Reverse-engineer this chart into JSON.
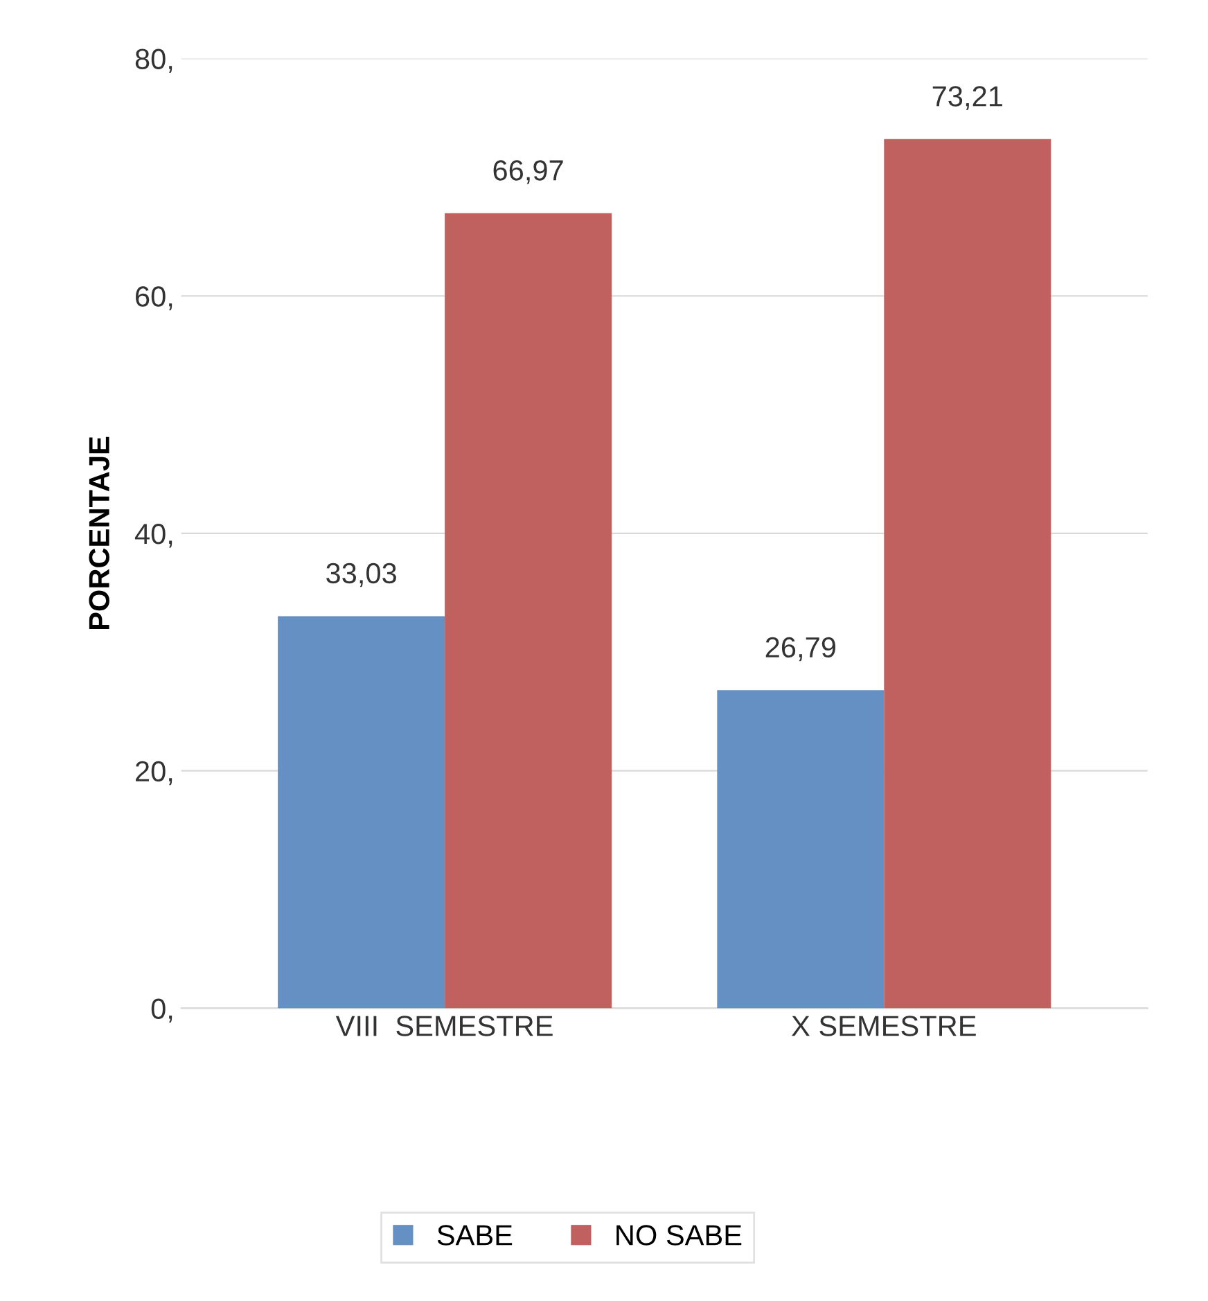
{
  "chart_data": {
    "type": "bar",
    "ylabel": "PORCENTAJE",
    "categories": [
      "VIII  SEMESTRE",
      "X SEMESTRE"
    ],
    "series": [
      {
        "name": "SABE",
        "color": "#6590c4",
        "values": [
          33.03,
          26.79
        ],
        "value_labels": [
          "33,03",
          "26,79"
        ]
      },
      {
        "name": "NO SABE",
        "color": "#c0605f",
        "values": [
          66.97,
          73.21
        ],
        "value_labels": [
          "66,97",
          "73,21"
        ]
      }
    ],
    "ylim": [
      0,
      80
    ],
    "yticks": [
      {
        "value": 0,
        "label": "0,"
      },
      {
        "value": 20,
        "label": "20,"
      },
      {
        "value": 40,
        "label": "40,"
      },
      {
        "value": 60,
        "label": "60,"
      },
      {
        "value": 80,
        "label": "80,"
      }
    ],
    "grid": "y",
    "legend": "bottom"
  }
}
